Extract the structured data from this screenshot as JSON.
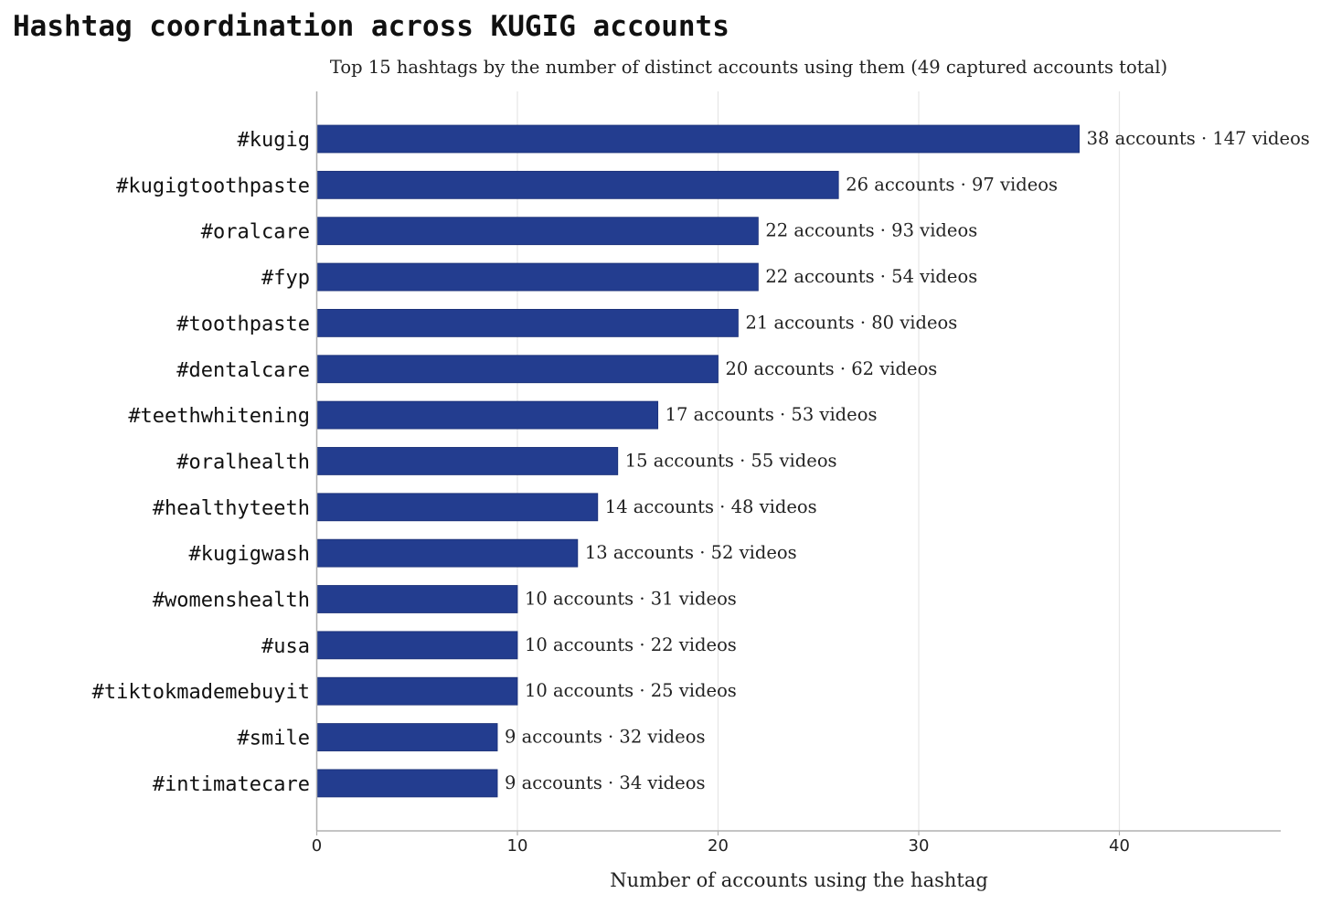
{
  "chart_data": {
    "type": "bar",
    "orientation": "horizontal",
    "title": "Hashtag coordination across KUGIG accounts",
    "subtitle": "Top 15 hashtags by the number of distinct accounts using them (49 captured accounts total)",
    "xlabel": "Number of accounts using the hashtag",
    "ylabel": "",
    "xlim": [
      0,
      48
    ],
    "xticks": [
      0,
      10,
      20,
      30,
      40
    ],
    "grid": "vertical",
    "bar_color": "#233d8f",
    "categories": [
      "#kugig",
      "#kugigtoothpaste",
      "#oralcare",
      "#fyp",
      "#toothpaste",
      "#dentalcare",
      "#teethwhitening",
      "#oralhealth",
      "#healthyteeth",
      "#kugigwash",
      "#womenshealth",
      "#usa",
      "#tiktokmademebuyit",
      "#smile",
      "#intimatecare"
    ],
    "values": [
      38,
      26,
      22,
      22,
      21,
      20,
      17,
      15,
      14,
      13,
      10,
      10,
      10,
      9,
      9
    ],
    "data_labels": [
      "38 accounts · 147 videos",
      "26 accounts · 97 videos",
      "22 accounts · 93 videos",
      "22 accounts · 54 videos",
      "21 accounts · 80 videos",
      "20 accounts · 62 videos",
      "17 accounts · 53 videos",
      "15 accounts · 55 videos",
      "14 accounts · 48 videos",
      "13 accounts · 52 videos",
      "10 accounts · 31 videos",
      "10 accounts · 22 videos",
      "10 accounts · 25 videos",
      "9 accounts · 32 videos",
      "9 accounts · 34 videos"
    ]
  }
}
